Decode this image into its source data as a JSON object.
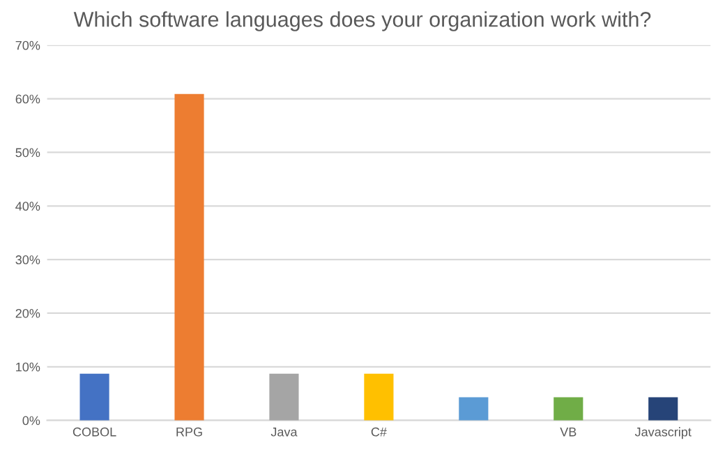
{
  "chart_data": {
    "type": "bar",
    "title": "Which software languages does your organization work with?",
    "categories": [
      "COBOL",
      "RPG",
      "Java",
      "C#",
      null,
      "VB",
      "Javascript"
    ],
    "values": [
      8.7,
      60.9,
      8.7,
      8.7,
      4.3,
      4.3,
      4.3
    ],
    "colors": [
      "#4472c4",
      "#ed7d31",
      "#a5a5a5",
      "#ffc000",
      "#5b9bd5",
      "#70ad47",
      "#264478"
    ],
    "ylim": [
      0,
      70
    ],
    "yticks": [
      {
        "value": 0,
        "label": "0%"
      },
      {
        "value": 10,
        "label": "10%"
      },
      {
        "value": 20,
        "label": "20%"
      },
      {
        "value": 30,
        "label": "30%"
      },
      {
        "value": 40,
        "label": "40%"
      },
      {
        "value": 50,
        "label": "50%"
      },
      {
        "value": 60,
        "label": "60%"
      },
      {
        "value": 70,
        "label": "70%"
      }
    ],
    "grid": "y"
  }
}
